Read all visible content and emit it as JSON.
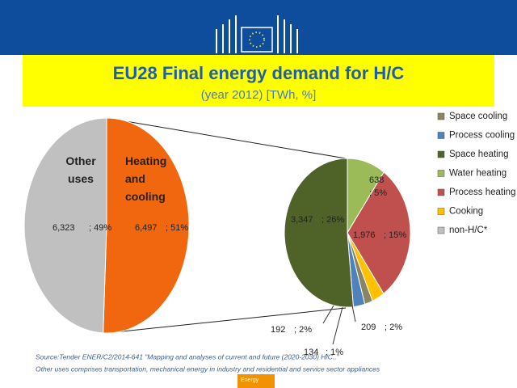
{
  "chart_data": {
    "type": "pie-of-pie",
    "title": "EU28 Final energy demand for H/C",
    "subtitle": "(year 2012) [TWh, %]",
    "main": {
      "categories": [
        "Other uses",
        "Heating and cooling"
      ],
      "values": [
        6323,
        6497
      ],
      "value_labels": [
        "6,323",
        "6,497"
      ],
      "percent_labels": [
        "; 49%",
        "; 51%"
      ],
      "colors": [
        "#c0c0c0",
        "#f0670f"
      ]
    },
    "detail": {
      "categories": [
        "Space cooling",
        "Process cooling",
        "Space heating",
        "Water heating",
        "Process heating",
        "Cooking",
        "non-H/C*"
      ],
      "values": [
        134,
        192,
        3347,
        638,
        1976,
        209,
        null
      ],
      "value_labels": [
        "134",
        "192",
        "3,347",
        "638",
        "1,976",
        "209",
        null
      ],
      "percent_labels": [
        "; 1%",
        "; 2%",
        "; 26%",
        "; 5%",
        "; 15%",
        "; 2%",
        null
      ],
      "colors": [
        "#8a8462",
        "#4f81bd",
        "#4f6228",
        "#9bbb59",
        "#c0504d",
        "#ffc000",
        "#bfbfbf"
      ]
    },
    "source": "Source:Tender ENER/C2/2014-641 \"Mapping and analyses of current and future (2020-2030) H/C..\"",
    "note": "Other uses comprises transportation, mechanical energy in industry and residential and service sector appliances",
    "badge": "Energy"
  }
}
